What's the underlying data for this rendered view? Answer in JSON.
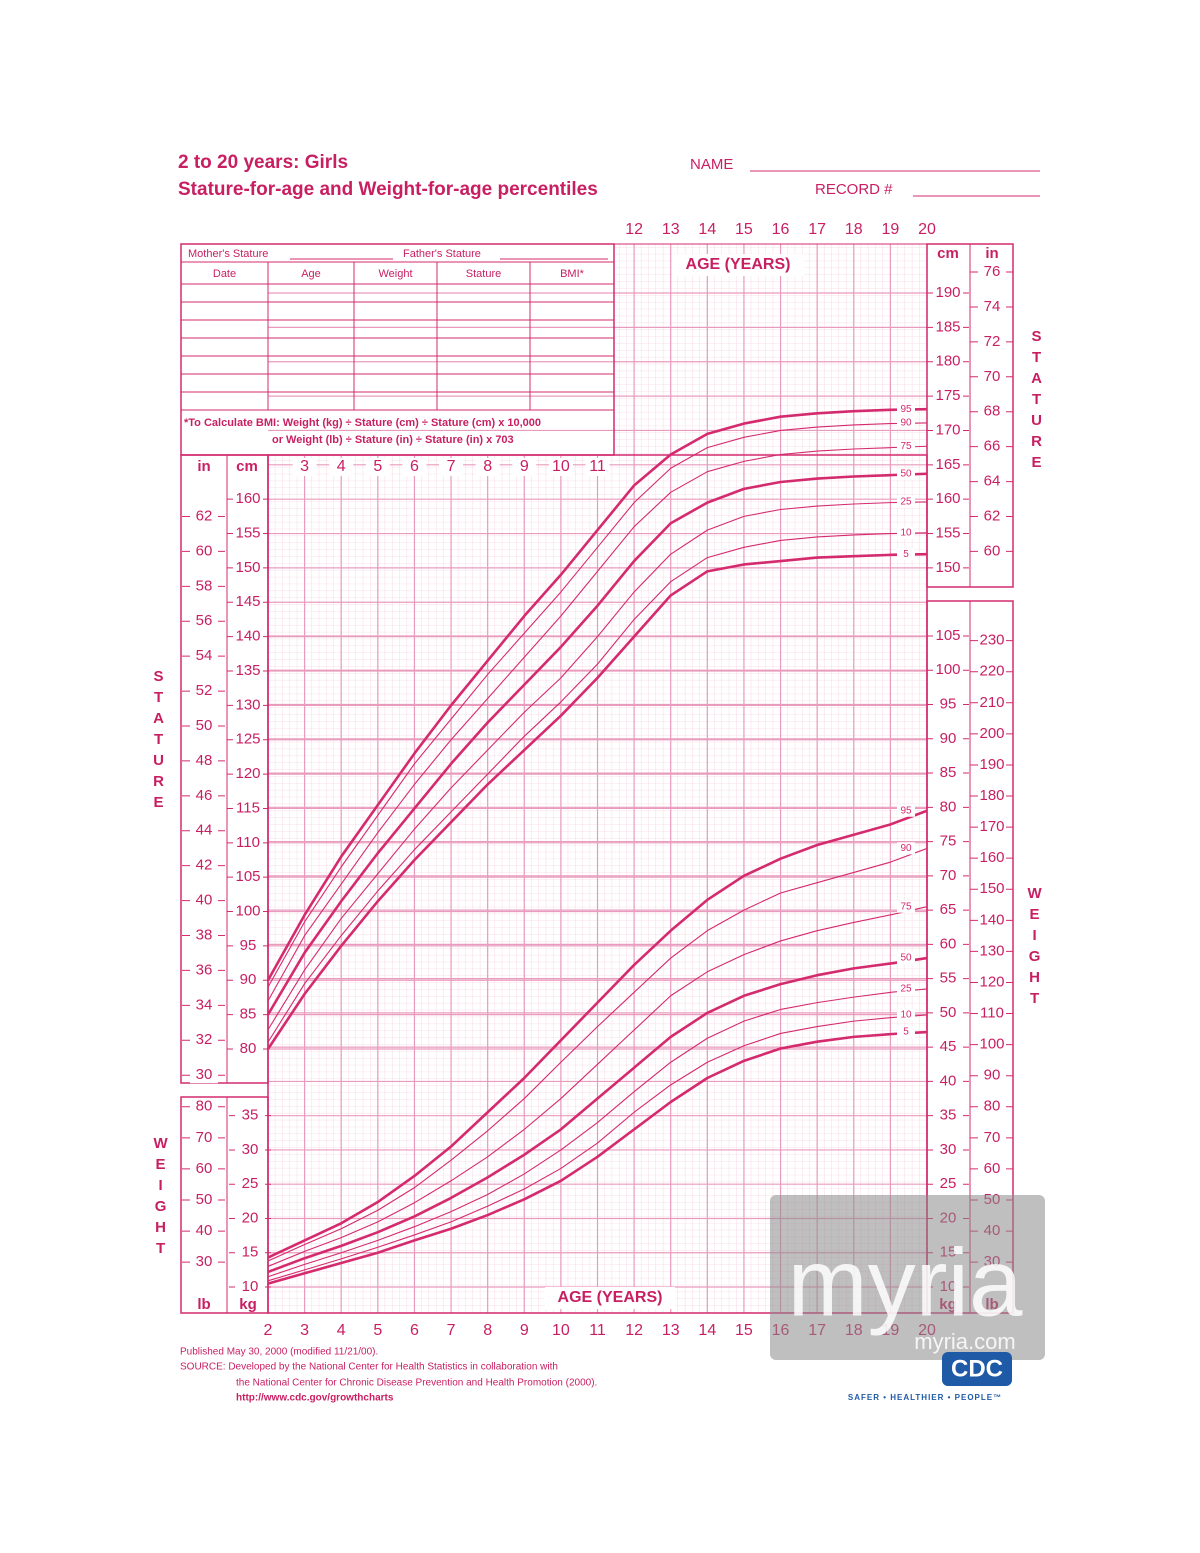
{
  "header": {
    "title": "2 to 20 years: Girls",
    "subtitle": "Stature-for-age and Weight-for-age percentiles",
    "name_label": "NAME",
    "record_label": "RECORD #"
  },
  "record_table": {
    "mother": "Mother's Stature",
    "father": "Father's Stature",
    "columns": [
      "Date",
      "Age",
      "Weight",
      "Stature",
      "BMI*"
    ],
    "bmi_note_1": "*To Calculate BMI: Weight (kg) ÷ Stature (cm) ÷ Stature (cm) x 10,000",
    "bmi_note_2": "or Weight (lb) ÷ Stature (in) ÷ Stature (in) x 703"
  },
  "chart_data": [
    {
      "type": "line",
      "axis_name": "STATURE",
      "x_label": "AGE (YEARS)",
      "y_unit": "cm",
      "y2_unit": "in",
      "grid": true,
      "x": [
        2,
        3,
        4,
        5,
        6,
        7,
        8,
        9,
        10,
        11,
        12,
        13,
        14,
        15,
        16,
        17,
        18,
        19,
        20
      ],
      "xlim": [
        2,
        20
      ],
      "xticks": [
        2,
        3,
        4,
        5,
        6,
        7,
        8,
        9,
        10,
        11,
        12,
        13,
        14,
        15,
        16,
        17,
        18,
        19,
        20
      ],
      "ylim": [
        80,
        190
      ],
      "yticks": [
        80,
        85,
        90,
        95,
        100,
        105,
        110,
        115,
        120,
        125,
        130,
        135,
        140,
        145,
        150,
        155,
        160,
        165,
        170,
        175,
        180,
        185,
        190
      ],
      "y2lim": [
        31.5,
        74.8
      ],
      "y2ticks": [
        30,
        32,
        34,
        36,
        38,
        40,
        42,
        44,
        46,
        48,
        50,
        52,
        54,
        56,
        58,
        60,
        62,
        64,
        66,
        68,
        70,
        72,
        74,
        76
      ],
      "series": [
        {
          "name": "95",
          "color": "#d42a6e",
          "bold": true,
          "values": [
            90,
            99.5,
            108,
            115.5,
            123,
            130,
            136.5,
            143,
            149,
            155.5,
            162,
            166.5,
            169.5,
            171,
            172,
            172.5,
            172.8,
            173,
            173.1
          ]
        },
        {
          "name": "90",
          "color": "#d42a6e",
          "bold": false,
          "values": [
            89,
            98.5,
            106.5,
            114,
            121.5,
            128,
            134.5,
            140.5,
            146.5,
            153,
            159.5,
            164.5,
            167.5,
            169,
            170,
            170.5,
            170.8,
            171,
            171.1
          ]
        },
        {
          "name": "75",
          "color": "#d42a6e",
          "bold": false,
          "values": [
            87,
            96.5,
            104,
            111.5,
            118.5,
            125,
            131,
            137,
            143,
            149.5,
            156,
            161,
            164,
            165.5,
            166.5,
            167,
            167.3,
            167.5,
            167.7
          ]
        },
        {
          "name": "50",
          "color": "#d42a6e",
          "bold": true,
          "values": [
            85,
            94,
            101.5,
            108.5,
            115,
            121.5,
            127.5,
            133,
            138.5,
            144.5,
            151,
            156.5,
            159.5,
            161.5,
            162.5,
            163,
            163.3,
            163.5,
            163.7
          ]
        },
        {
          "name": "25",
          "color": "#d42a6e",
          "bold": false,
          "values": [
            82.8,
            91.5,
            99,
            105.5,
            112,
            118,
            123.5,
            129,
            134,
            140,
            146.5,
            152,
            155.5,
            157.5,
            158.5,
            159,
            159.3,
            159.5,
            159.6
          ]
        },
        {
          "name": "10",
          "color": "#d42a6e",
          "bold": false,
          "values": [
            81,
            89.5,
            96.5,
            103,
            109,
            114.5,
            120,
            125.5,
            130.5,
            136,
            142.5,
            148,
            151.5,
            153,
            154,
            154.5,
            154.8,
            155,
            155.1
          ]
        },
        {
          "name": "5",
          "color": "#d42a6e",
          "bold": true,
          "values": [
            80,
            88,
            95,
            101.5,
            107.5,
            113,
            118.5,
            123.5,
            128.5,
            134,
            140,
            146,
            149.5,
            150.5,
            151,
            151.5,
            151.7,
            151.9,
            152
          ]
        }
      ]
    },
    {
      "type": "line",
      "axis_name": "WEIGHT",
      "x_label": "AGE (YEARS)",
      "y_unit": "kg",
      "y2_unit": "lb",
      "grid": true,
      "x": [
        2,
        3,
        4,
        5,
        6,
        7,
        8,
        9,
        10,
        11,
        12,
        13,
        14,
        15,
        16,
        17,
        18,
        19,
        20
      ],
      "xlim": [
        2,
        20
      ],
      "xticks": [
        2,
        3,
        4,
        5,
        6,
        7,
        8,
        9,
        10,
        11,
        12,
        13,
        14,
        15,
        16,
        17,
        18,
        19,
        20
      ],
      "ylim": [
        10,
        105
      ],
      "yticks": [
        10,
        15,
        20,
        25,
        30,
        35,
        40,
        45,
        50,
        55,
        60,
        65,
        70,
        75,
        80,
        85,
        90,
        95,
        100,
        105
      ],
      "y2lim": [
        22,
        231.5
      ],
      "y2ticks": [
        30,
        40,
        50,
        60,
        70,
        80,
        90,
        100,
        110,
        120,
        130,
        140,
        150,
        160,
        170,
        180,
        190,
        200,
        210,
        220,
        230
      ],
      "series": [
        {
          "name": "95",
          "color": "#d42a6e",
          "bold": true,
          "values": [
            14.3,
            16.8,
            19.3,
            22.4,
            26.2,
            30.5,
            35.5,
            40.5,
            46,
            51.5,
            57,
            62,
            66.5,
            70,
            72.5,
            74.5,
            76,
            77.5,
            79.5
          ]
        },
        {
          "name": "90",
          "color": "#d42a6e",
          "bold": false,
          "values": [
            13.8,
            16.2,
            18.5,
            21.2,
            24.5,
            28.5,
            32.8,
            37.5,
            42.8,
            48,
            53,
            58,
            62,
            65,
            67.5,
            69,
            70.5,
            72,
            74
          ]
        },
        {
          "name": "75",
          "color": "#d42a6e",
          "bold": false,
          "values": [
            13,
            15.2,
            17.2,
            19.5,
            22.3,
            25.5,
            29,
            33,
            37.5,
            42.5,
            47.5,
            52.5,
            56,
            58.5,
            60.5,
            62,
            63.2,
            64.3,
            65.5
          ]
        },
        {
          "name": "50",
          "color": "#d42a6e",
          "bold": true,
          "values": [
            12.2,
            14.2,
            16,
            18,
            20.3,
            23,
            26,
            29.3,
            33,
            37.5,
            42,
            46.5,
            50,
            52.5,
            54.2,
            55.5,
            56.5,
            57.2,
            58
          ]
        },
        {
          "name": "25",
          "color": "#d42a6e",
          "bold": false,
          "values": [
            11.5,
            13.3,
            15,
            16.8,
            18.8,
            21,
            23.5,
            26.5,
            30,
            34,
            38.5,
            42.8,
            46.3,
            48.8,
            50.5,
            51.5,
            52.3,
            53,
            53.5
          ]
        },
        {
          "name": "10",
          "color": "#d42a6e",
          "bold": false,
          "values": [
            10.9,
            12.5,
            14.1,
            15.8,
            17.6,
            19.5,
            21.8,
            24.3,
            27.3,
            31,
            35.5,
            39.5,
            42.8,
            45.2,
            47,
            48,
            48.8,
            49.3,
            49.7
          ]
        },
        {
          "name": "5",
          "color": "#d42a6e",
          "bold": true,
          "values": [
            10.5,
            12,
            13.5,
            15,
            16.8,
            18.5,
            20.5,
            22.8,
            25.5,
            29,
            33,
            37,
            40.5,
            43,
            44.8,
            45.8,
            46.5,
            46.9,
            47.2
          ]
        }
      ]
    }
  ],
  "footer": {
    "published": "Published May 30, 2000 (modified 11/21/00).",
    "source_1": "SOURCE: Developed by the National Center for Health Statistics in collaboration with",
    "source_2": "the National Center for Chronic Disease Prevention and Health Promotion (2000).",
    "url": "http://www.cdc.gov/growthcharts"
  },
  "logo": {
    "text": "CDC",
    "tagline": "SAFER • HEALTHIER • PEOPLE™"
  },
  "watermark": {
    "text": "myria",
    "url": "myria.com"
  }
}
